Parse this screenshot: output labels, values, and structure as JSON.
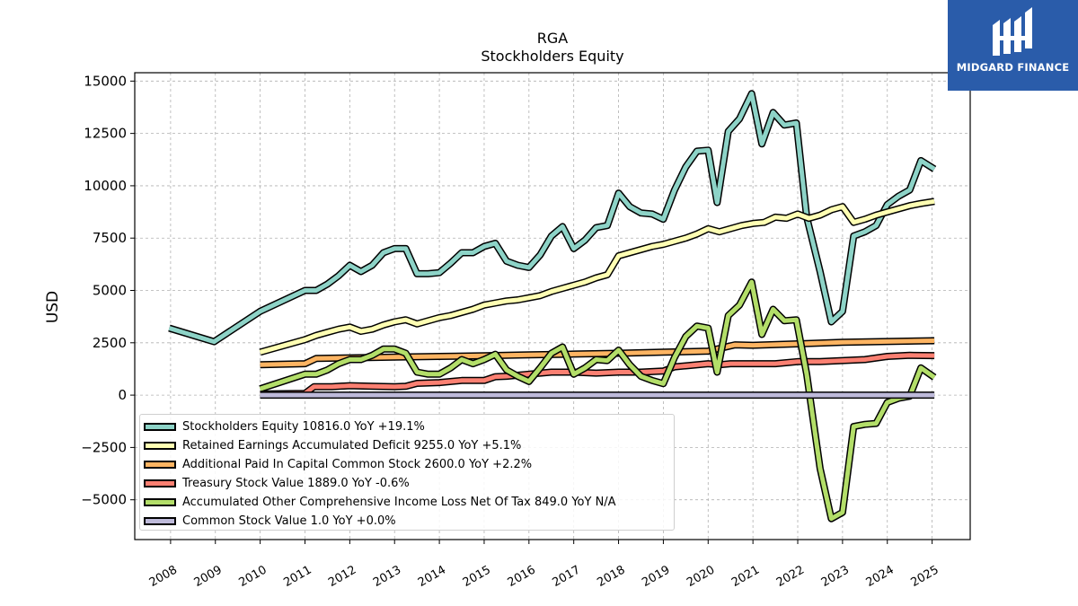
{
  "title": "RGA",
  "subtitle": "Stockholders  Equity",
  "logo": {
    "text": "MIDGARD FINANCE",
    "icon": "midgard-logo-icon",
    "color": "#2a5caa"
  },
  "legend": [
    {
      "label": "Stockholders Equity  10816.0 YoY +19.1%",
      "color": "#8dd3c7"
    },
    {
      "label": "Retained Earnings Accumulated Deficit  9255.0 YoY +5.1%",
      "color": "#ffffb3"
    },
    {
      "label": "Additional Paid In Capital Common Stock  2600.0 YoY +2.2%",
      "color": "#fdb462"
    },
    {
      "label": "Treasury Stock Value  1889.0 YoY -0.6%",
      "color": "#fb8072"
    },
    {
      "label": "Accumulated Other Comprehensive Income Loss Net Of Tax  849.0 YoY N/A",
      "color": "#b3de69"
    },
    {
      "label": "Common Stock Value  1.0 YoY +0.0%",
      "color": "#bebada"
    }
  ],
  "chart_data": {
    "type": "line",
    "title": "RGA",
    "subtitle": "Stockholders  Equity",
    "xlabel": "",
    "ylabel": "USD",
    "xlim": [
      2007.2,
      2025.85
    ],
    "ylim": [
      -6900,
      15400
    ],
    "yticks": [
      -5000,
      -2500,
      0,
      2500,
      5000,
      7500,
      10000,
      12500,
      15000
    ],
    "ytick_labels": [
      "−5000",
      "−2500",
      "0",
      "2500",
      "5000",
      "7500",
      "10000",
      "12500",
      "15000"
    ],
    "xticks": [
      2008,
      2009,
      2010,
      2011,
      2012,
      2013,
      2014,
      2015,
      2016,
      2017,
      2018,
      2019,
      2020,
      2021,
      2022,
      2023,
      2024,
      2025
    ],
    "grid": true,
    "legend_position": "lower-left",
    "series": [
      {
        "name": "Stockholders Equity",
        "color": "#8dd3c7",
        "x": [
          2007.97,
          2008.97,
          2010.0,
          2011.0,
          2011.25,
          2011.5,
          2011.75,
          2012.0,
          2012.25,
          2012.5,
          2012.75,
          2013.0,
          2013.25,
          2013.5,
          2013.75,
          2014.0,
          2014.25,
          2014.5,
          2014.75,
          2015.0,
          2015.25,
          2015.5,
          2015.75,
          2016.0,
          2016.25,
          2016.5,
          2016.75,
          2017.0,
          2017.25,
          2017.5,
          2017.75,
          2018.0,
          2018.25,
          2018.5,
          2018.75,
          2019.0,
          2019.25,
          2019.5,
          2019.75,
          2020.0,
          2020.2,
          2020.45,
          2020.7,
          2020.97,
          2021.2,
          2021.45,
          2021.7,
          2021.97,
          2022.2,
          2022.5,
          2022.75,
          2023.0,
          2023.25,
          2023.5,
          2023.75,
          2024.0,
          2024.25,
          2024.5,
          2024.75,
          2025.05
        ],
        "values": [
          3200,
          2550,
          4000,
          5000,
          5000,
          5300,
          5700,
          6200,
          5900,
          6200,
          6800,
          7000,
          7000,
          5800,
          5800,
          5850,
          6300,
          6800,
          6800,
          7100,
          7250,
          6400,
          6200,
          6100,
          6700,
          7600,
          8050,
          7000,
          7400,
          8000,
          8100,
          9650,
          9000,
          8700,
          8650,
          8400,
          9800,
          10900,
          11650,
          11700,
          9200,
          12600,
          13200,
          14400,
          12000,
          13500,
          12900,
          13000,
          8500,
          5900,
          3500,
          4000,
          7600,
          7800,
          8100,
          9100,
          9500,
          9800,
          11200,
          10800
        ]
      },
      {
        "name": "Retained Earnings Accumulated Deficit",
        "color": "#ffffb3",
        "x": [
          2010.0,
          2011.0,
          2011.25,
          2011.5,
          2011.75,
          2012.0,
          2012.25,
          2012.5,
          2012.75,
          2013.0,
          2013.25,
          2013.5,
          2013.75,
          2014.0,
          2014.25,
          2014.5,
          2014.75,
          2015.0,
          2015.25,
          2015.5,
          2015.75,
          2016.0,
          2016.25,
          2016.5,
          2016.75,
          2017.0,
          2017.25,
          2017.5,
          2017.75,
          2018.0,
          2018.25,
          2018.5,
          2018.75,
          2019.0,
          2019.25,
          2019.5,
          2019.75,
          2020.0,
          2020.25,
          2020.5,
          2020.75,
          2021.0,
          2021.25,
          2021.5,
          2021.75,
          2022.0,
          2022.25,
          2022.5,
          2022.75,
          2023.0,
          2023.25,
          2023.5,
          2023.75,
          2024.0,
          2024.25,
          2024.5,
          2024.75,
          2025.05
        ],
        "values": [
          2050,
          2650,
          2850,
          3000,
          3150,
          3250,
          3050,
          3150,
          3350,
          3500,
          3600,
          3400,
          3550,
          3700,
          3800,
          3950,
          4100,
          4300,
          4400,
          4500,
          4550,
          4650,
          4750,
          4950,
          5100,
          5250,
          5400,
          5600,
          5750,
          6650,
          6800,
          6950,
          7100,
          7200,
          7350,
          7500,
          7700,
          7950,
          7800,
          7950,
          8100,
          8200,
          8250,
          8500,
          8450,
          8650,
          8450,
          8600,
          8850,
          9000,
          8250,
          8400,
          8600,
          8750,
          8900,
          9050,
          9150,
          9255
        ]
      },
      {
        "name": "Additional Paid In Capital Common Stock",
        "color": "#fdb462",
        "x": [
          2010.0,
          2011.0,
          2011.25,
          2012.0,
          2013.0,
          2014.0,
          2015.0,
          2016.0,
          2017.0,
          2018.0,
          2019.0,
          2020.0,
          2020.6,
          2021.0,
          2022.0,
          2023.0,
          2024.0,
          2025.05
        ],
        "values": [
          1450,
          1500,
          1750,
          1780,
          1820,
          1850,
          1880,
          1920,
          1960,
          2000,
          2050,
          2100,
          2400,
          2380,
          2450,
          2520,
          2560,
          2600
        ]
      },
      {
        "name": "Treasury Stock Value",
        "color": "#fb8072",
        "x": [
          2010.0,
          2011.0,
          2011.2,
          2011.6,
          2012.0,
          2012.5,
          2013.0,
          2013.25,
          2013.5,
          2014.0,
          2014.5,
          2015.0,
          2015.25,
          2015.5,
          2016.0,
          2016.5,
          2017.0,
          2017.5,
          2018.0,
          2018.5,
          2019.0,
          2019.25,
          2019.5,
          2020.0,
          2020.25,
          2020.5,
          2021.0,
          2021.5,
          2022.0,
          2022.5,
          2023.0,
          2023.5,
          2024.0,
          2024.5,
          2025.05
        ],
        "values": [
          50,
          80,
          400,
          400,
          450,
          420,
          400,
          420,
          560,
          600,
          700,
          700,
          880,
          900,
          1000,
          1100,
          1100,
          1050,
          1100,
          1100,
          1150,
          1350,
          1400,
          1500,
          1450,
          1500,
          1500,
          1500,
          1600,
          1600,
          1650,
          1700,
          1850,
          1900,
          1889
        ]
      },
      {
        "name": "Accumulated Other Comprehensive Income Loss Net Of Tax",
        "color": "#b3de69",
        "x": [
          2010.0,
          2011.0,
          2011.25,
          2011.5,
          2011.75,
          2012.0,
          2012.25,
          2012.5,
          2012.75,
          2013.0,
          2013.25,
          2013.5,
          2013.75,
          2014.0,
          2014.25,
          2014.5,
          2014.75,
          2015.0,
          2015.25,
          2015.5,
          2015.75,
          2016.0,
          2016.25,
          2016.5,
          2016.75,
          2017.0,
          2017.25,
          2017.5,
          2017.75,
          2018.0,
          2018.25,
          2018.5,
          2018.75,
          2019.0,
          2019.25,
          2019.5,
          2019.75,
          2020.0,
          2020.2,
          2020.45,
          2020.7,
          2020.97,
          2021.2,
          2021.45,
          2021.7,
          2021.97,
          2022.2,
          2022.5,
          2022.75,
          2023.0,
          2023.25,
          2023.5,
          2023.75,
          2024.0,
          2024.25,
          2024.5,
          2024.75,
          2025.05
        ],
        "values": [
          300,
          1000,
          1000,
          1200,
          1500,
          1700,
          1700,
          1900,
          2200,
          2200,
          2000,
          1100,
          1000,
          1000,
          1300,
          1700,
          1500,
          1700,
          1950,
          1200,
          900,
          650,
          1300,
          2000,
          2300,
          1000,
          1300,
          1700,
          1650,
          2150,
          1450,
          900,
          700,
          550,
          1800,
          2800,
          3300,
          3200,
          1100,
          3800,
          4300,
          5400,
          2900,
          4100,
          3550,
          3600,
          1000,
          -3500,
          -5900,
          -5600,
          -1500,
          -1400,
          -1350,
          -350,
          -150,
          -50,
          1300,
          849
        ]
      },
      {
        "name": "Common Stock Value",
        "color": "#bebada",
        "x": [
          2010.0,
          2025.05
        ],
        "values": [
          1,
          1
        ]
      }
    ]
  }
}
